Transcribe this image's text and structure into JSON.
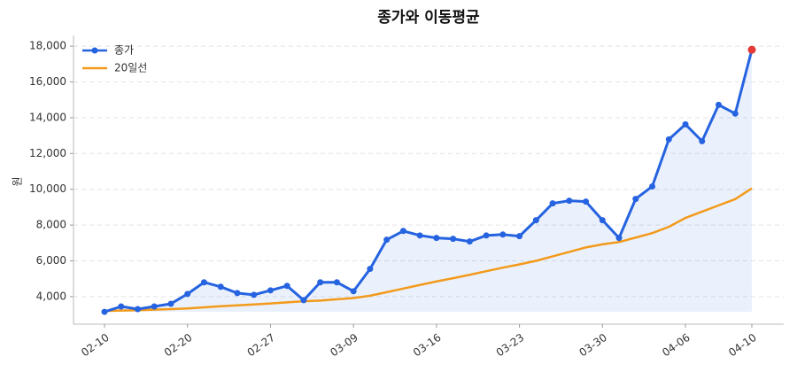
{
  "chart_data": {
    "type": "line",
    "title": "종가와 이동평균",
    "y_label": "원",
    "categories": [
      "02-10",
      null,
      null,
      null,
      null,
      "02-20",
      null,
      null,
      null,
      null,
      "02-27",
      null,
      null,
      null,
      null,
      "03-09",
      null,
      null,
      null,
      null,
      "03-16",
      null,
      null,
      null,
      null,
      "03-23",
      null,
      null,
      null,
      null,
      "03-30",
      null,
      null,
      null,
      null,
      "04-06",
      null,
      null,
      null,
      "04-10"
    ],
    "series": [
      {
        "name": "종가",
        "color": "#2563e0",
        "marker": true,
        "fill": true,
        "highlight_last": "#e53935",
        "values": [
          3150,
          3450,
          3300,
          3450,
          3600,
          4150,
          4800,
          4550,
          4200,
          4100,
          4350,
          4600,
          3800,
          4800,
          4800,
          4300,
          5550,
          7180,
          7670,
          7420,
          7280,
          7230,
          7080,
          7420,
          7470,
          7380,
          8270,
          9210,
          9360,
          9310,
          8270,
          7280,
          9460,
          10160,
          12790,
          13630,
          12690,
          14720,
          14230,
          17800
        ]
      },
      {
        "name": "20일선",
        "color": "#f29a1b",
        "marker": false,
        "fill": false,
        "values": [
          3200,
          3220,
          3240,
          3270,
          3300,
          3340,
          3400,
          3460,
          3510,
          3560,
          3620,
          3680,
          3740,
          3780,
          3850,
          3920,
          4050,
          4250,
          4450,
          4650,
          4850,
          5030,
          5220,
          5420,
          5620,
          5800,
          6000,
          6250,
          6500,
          6750,
          6920,
          7050,
          7300,
          7550,
          7900,
          8400,
          8750,
          9100,
          9450,
          10050
        ]
      }
    ],
    "ylim": [
      2460,
      18600
    ],
    "yticks": [
      {
        "value": 4000,
        "label": "4,000"
      },
      {
        "value": 6000,
        "label": "6,000"
      },
      {
        "value": 8000,
        "label": "8,000"
      },
      {
        "value": 10000,
        "label": "10,000"
      },
      {
        "value": 12000,
        "label": "12,000"
      },
      {
        "value": 14000,
        "label": "14,000"
      },
      {
        "value": 16000,
        "label": "16,000"
      },
      {
        "value": 18000,
        "label": "18,000"
      }
    ],
    "grid": true,
    "legend": "upper-left"
  }
}
